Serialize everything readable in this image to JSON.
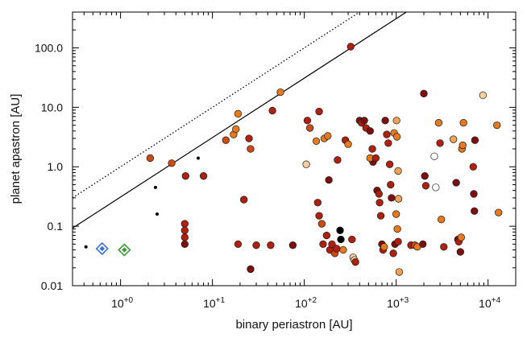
{
  "chart_data": {
    "type": "scatter",
    "xlabel": "binary periastron [AU]",
    "ylabel": "planet apastron [AU]",
    "xscale": "log",
    "yscale": "log",
    "xlim": [
      0.3,
      20000
    ],
    "ylim": [
      0.01,
      400
    ],
    "grid": false,
    "legend": "none",
    "x_ticks": [
      {
        "value": 1,
        "label": "10",
        "exp": "+0"
      },
      {
        "value": 10,
        "label": "10",
        "exp": "+1"
      },
      {
        "value": 100,
        "label": "10",
        "exp": "+2"
      },
      {
        "value": 1000,
        "label": "10",
        "exp": "+3"
      },
      {
        "value": 10000,
        "label": "10",
        "exp": "+4"
      }
    ],
    "y_ticks": [
      {
        "value": 0.01,
        "label": "0.01"
      },
      {
        "value": 0.1,
        "label": "0.1"
      },
      {
        "value": 1,
        "label": "1.0"
      },
      {
        "value": 10,
        "label": "10.0"
      },
      {
        "value": 100,
        "label": "100.0"
      }
    ],
    "lines": [
      {
        "style": "solid",
        "color": "#000000",
        "slope": 1,
        "factor": 0.31
      },
      {
        "style": "dotted",
        "color": "#000000",
        "slope": 1,
        "factor": 1.0
      }
    ],
    "colors": {
      "dark": "#7d0f0f",
      "red": "#b0200f",
      "rust": "#cc4a13",
      "orange": "#e87a1e",
      "light_orange": "#f2a255",
      "pale": "#f7cfa0",
      "white": "#ffffff",
      "black": "#000000",
      "blue": "#3a6fd8",
      "green": "#3a9a3a"
    },
    "diamonds": [
      {
        "x": 0.63,
        "y": 0.042,
        "color": "blue"
      },
      {
        "x": 1.1,
        "y": 0.04,
        "color": "green"
      }
    ],
    "small_points": [
      {
        "x": 0.42,
        "y": 0.045
      },
      {
        "x": 2.4,
        "y": 0.45
      },
      {
        "x": 2.5,
        "y": 0.16
      },
      {
        "x": 7.0,
        "y": 1.4
      }
    ],
    "points": [
      {
        "x": 2.1,
        "y": 1.4,
        "c": "rust"
      },
      {
        "x": 3.6,
        "y": 1.15,
        "c": "rust"
      },
      {
        "x": 5.1,
        "y": 0.7,
        "c": "red"
      },
      {
        "x": 5.0,
        "y": 0.11,
        "c": "red"
      },
      {
        "x": 5.0,
        "y": 0.085,
        "c": "red"
      },
      {
        "x": 5.0,
        "y": 0.065,
        "c": "red"
      },
      {
        "x": 5.0,
        "y": 0.05,
        "c": "dark"
      },
      {
        "x": 8.0,
        "y": 0.7,
        "c": "red"
      },
      {
        "x": 14,
        "y": 2.8,
        "c": "rust"
      },
      {
        "x": 17,
        "y": 3.5,
        "c": "orange"
      },
      {
        "x": 18,
        "y": 4.3,
        "c": "orange"
      },
      {
        "x": 19,
        "y": 7.8,
        "c": "orange"
      },
      {
        "x": 25,
        "y": 3.0,
        "c": "red"
      },
      {
        "x": 26,
        "y": 2.0,
        "c": "rust"
      },
      {
        "x": 22,
        "y": 0.28,
        "c": "red"
      },
      {
        "x": 19,
        "y": 0.05,
        "c": "red"
      },
      {
        "x": 26,
        "y": 0.019,
        "c": "dark"
      },
      {
        "x": 30,
        "y": 0.048,
        "c": "red"
      },
      {
        "x": 43,
        "y": 0.048,
        "c": "red"
      },
      {
        "x": 45,
        "y": 8.8,
        "c": "red"
      },
      {
        "x": 55,
        "y": 18,
        "c": "orange"
      },
      {
        "x": 75,
        "y": 0.048,
        "c": "dark"
      },
      {
        "x": 105,
        "y": 1.1,
        "c": "pale"
      },
      {
        "x": 108,
        "y": 6.0,
        "c": "red"
      },
      {
        "x": 115,
        "y": 4.5,
        "c": "rust"
      },
      {
        "x": 135,
        "y": 2.7,
        "c": "orange"
      },
      {
        "x": 145,
        "y": 8.5,
        "c": "red"
      },
      {
        "x": 165,
        "y": 3.0,
        "c": "orange"
      },
      {
        "x": 180,
        "y": 3.3,
        "c": "orange"
      },
      {
        "x": 185,
        "y": 0.6,
        "c": "dark"
      },
      {
        "x": 140,
        "y": 0.25,
        "c": "red"
      },
      {
        "x": 145,
        "y": 0.15,
        "c": "red"
      },
      {
        "x": 155,
        "y": 0.11,
        "c": "rust"
      },
      {
        "x": 160,
        "y": 0.05,
        "c": "red"
      },
      {
        "x": 175,
        "y": 0.07,
        "c": "red"
      },
      {
        "x": 190,
        "y": 0.04,
        "c": "red"
      },
      {
        "x": 200,
        "y": 0.05,
        "c": "red"
      },
      {
        "x": 215,
        "y": 0.035,
        "c": "rust"
      },
      {
        "x": 225,
        "y": 0.042,
        "c": "red"
      },
      {
        "x": 230,
        "y": 1.3,
        "c": "red"
      },
      {
        "x": 245,
        "y": 0.085,
        "c": "black"
      },
      {
        "x": 250,
        "y": 0.06,
        "c": "black"
      },
      {
        "x": 265,
        "y": 0.04,
        "c": "orange"
      },
      {
        "x": 280,
        "y": 2.8,
        "c": "red"
      },
      {
        "x": 300,
        "y": 2.4,
        "c": "orange"
      },
      {
        "x": 320,
        "y": 105,
        "c": "red"
      },
      {
        "x": 330,
        "y": 0.06,
        "c": "red"
      },
      {
        "x": 340,
        "y": 0.03,
        "c": "pale"
      },
      {
        "x": 350,
        "y": 0.027,
        "c": "pale"
      },
      {
        "x": 360,
        "y": 0.025,
        "c": "red"
      },
      {
        "x": 400,
        "y": 6.0,
        "c": "dark"
      },
      {
        "x": 420,
        "y": 5.5,
        "c": "red"
      },
      {
        "x": 450,
        "y": 6.0,
        "c": "dark"
      },
      {
        "x": 470,
        "y": 4.5,
        "c": "red"
      },
      {
        "x": 520,
        "y": 4.0,
        "c": "dark"
      },
      {
        "x": 550,
        "y": 2.0,
        "c": "red"
      },
      {
        "x": 560,
        "y": 1.2,
        "c": "dark"
      },
      {
        "x": 520,
        "y": 1.4,
        "c": "orange"
      },
      {
        "x": 600,
        "y": 1.4,
        "c": "red"
      },
      {
        "x": 620,
        "y": 0.4,
        "c": "dark"
      },
      {
        "x": 650,
        "y": 0.35,
        "c": "red"
      },
      {
        "x": 660,
        "y": 0.25,
        "c": "red"
      },
      {
        "x": 680,
        "y": 0.15,
        "c": "red"
      },
      {
        "x": 700,
        "y": 0.05,
        "c": "dark"
      },
      {
        "x": 720,
        "y": 0.04,
        "c": "red"
      },
      {
        "x": 740,
        "y": 0.045,
        "c": "orange"
      },
      {
        "x": 760,
        "y": 6.0,
        "c": "dark"
      },
      {
        "x": 790,
        "y": 3.5,
        "c": "red"
      },
      {
        "x": 820,
        "y": 2.5,
        "c": "red"
      },
      {
        "x": 850,
        "y": 1.1,
        "c": "red"
      },
      {
        "x": 870,
        "y": 0.5,
        "c": "red"
      },
      {
        "x": 890,
        "y": 0.3,
        "c": "dark"
      },
      {
        "x": 930,
        "y": 0.035,
        "c": "red"
      },
      {
        "x": 970,
        "y": 0.05,
        "c": "dark"
      },
      {
        "x": 1000,
        "y": 0.16,
        "c": "orange"
      },
      {
        "x": 1030,
        "y": 0.09,
        "c": "orange"
      },
      {
        "x": 1050,
        "y": 0.055,
        "c": "red"
      },
      {
        "x": 1080,
        "y": 0.017,
        "c": "light_orange"
      },
      {
        "x": 950,
        "y": 3.7,
        "c": "orange"
      },
      {
        "x": 1010,
        "y": 6.0,
        "c": "light_orange"
      },
      {
        "x": 1020,
        "y": 3.2,
        "c": "orange"
      },
      {
        "x": 1050,
        "y": 0.85,
        "c": "light_orange"
      },
      {
        "x": 1060,
        "y": 0.29,
        "c": "light_orange"
      },
      {
        "x": 1450,
        "y": 0.048,
        "c": "red"
      },
      {
        "x": 1600,
        "y": 0.048,
        "c": "rust"
      },
      {
        "x": 1700,
        "y": 0.045,
        "c": "orange"
      },
      {
        "x": 1950,
        "y": 0.05,
        "c": "dark"
      },
      {
        "x": 2000,
        "y": 17,
        "c": "dark"
      },
      {
        "x": 2050,
        "y": 0.7,
        "c": "dark"
      },
      {
        "x": 2100,
        "y": 0.48,
        "c": "red"
      },
      {
        "x": 2600,
        "y": 1.5,
        "c": "white"
      },
      {
        "x": 2700,
        "y": 0.45,
        "c": "white"
      },
      {
        "x": 2900,
        "y": 5.5,
        "c": "orange"
      },
      {
        "x": 3000,
        "y": 2.5,
        "c": "red"
      },
      {
        "x": 3100,
        "y": 0.13,
        "c": "orange"
      },
      {
        "x": 3300,
        "y": 0.045,
        "c": "red"
      },
      {
        "x": 4200,
        "y": 2.9,
        "c": "light_orange"
      },
      {
        "x": 4500,
        "y": 0.54,
        "c": "dark"
      },
      {
        "x": 4700,
        "y": 0.06,
        "c": "dark"
      },
      {
        "x": 4800,
        "y": 0.055,
        "c": "red"
      },
      {
        "x": 5000,
        "y": 0.037,
        "c": "dark"
      },
      {
        "x": 5100,
        "y": 0.065,
        "c": "orange"
      },
      {
        "x": 5200,
        "y": 2.0,
        "c": "orange"
      },
      {
        "x": 5300,
        "y": 2.3,
        "c": "orange"
      },
      {
        "x": 5400,
        "y": 5.5,
        "c": "orange"
      },
      {
        "x": 6900,
        "y": 1.0,
        "c": "red"
      },
      {
        "x": 7000,
        "y": 0.35,
        "c": "dark"
      },
      {
        "x": 7100,
        "y": 0.18,
        "c": "dark"
      },
      {
        "x": 7200,
        "y": 2.8,
        "c": "dark"
      },
      {
        "x": 8800,
        "y": 16,
        "c": "pale"
      },
      {
        "x": 12500,
        "y": 5.0,
        "c": "orange"
      },
      {
        "x": 13000,
        "y": 0.17,
        "c": "orange"
      }
    ]
  }
}
